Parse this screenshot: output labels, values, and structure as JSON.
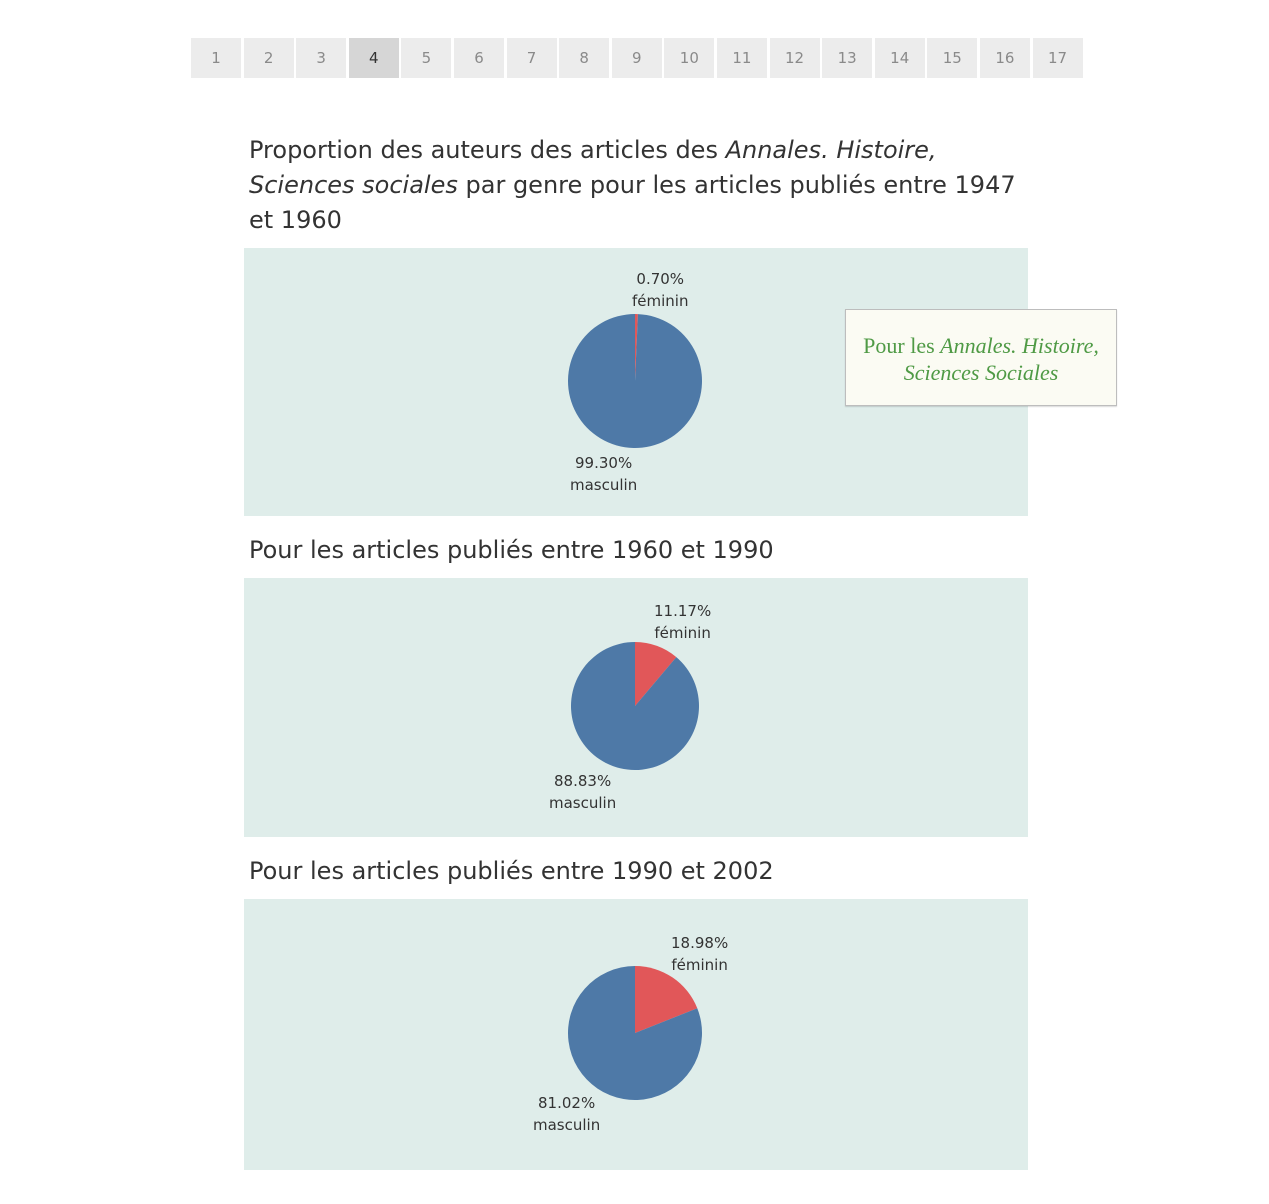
{
  "pagination": {
    "pages": [
      "1",
      "2",
      "3",
      "4",
      "5",
      "6",
      "7",
      "8",
      "9",
      "10",
      "11",
      "12",
      "13",
      "14",
      "15",
      "16",
      "17"
    ],
    "current": "4"
  },
  "section1": {
    "title_part1": "Proportion des auteurs des articles des ",
    "title_italic": "Annales. Histoire, Sciences sociales",
    "title_part2": " par genre pour les articles publiés entre 1947 et 1960"
  },
  "section2": {
    "title": "Pour les articles publiés entre 1960 et 1990"
  },
  "section3": {
    "title": "Pour les articles publiés entre 1990 et 2002"
  },
  "note": {
    "text_plain": "Pour les ",
    "text_italic": "Annales. Histoire, Sciences Sociales"
  },
  "colors": {
    "masculin": "#4e79a7",
    "feminin": "#e15759",
    "panel_bg": "#dfedea"
  },
  "chart_data": [
    {
      "type": "pie",
      "slices": [
        {
          "label": "féminin",
          "value": 0.7,
          "display": "0.70%",
          "color": "#e15759"
        },
        {
          "label": "masculin",
          "value": 99.3,
          "display": "99.30%",
          "color": "#4e79a7"
        }
      ]
    },
    {
      "type": "pie",
      "slices": [
        {
          "label": "féminin",
          "value": 11.17,
          "display": "11.17%",
          "color": "#e15759"
        },
        {
          "label": "masculin",
          "value": 88.83,
          "display": "88.83%",
          "color": "#4e79a7"
        }
      ]
    },
    {
      "type": "pie",
      "slices": [
        {
          "label": "féminin",
          "value": 18.98,
          "display": "18.98%",
          "color": "#e15759"
        },
        {
          "label": "masculin",
          "value": 81.02,
          "display": "81.02%",
          "color": "#4e79a7"
        }
      ]
    }
  ]
}
